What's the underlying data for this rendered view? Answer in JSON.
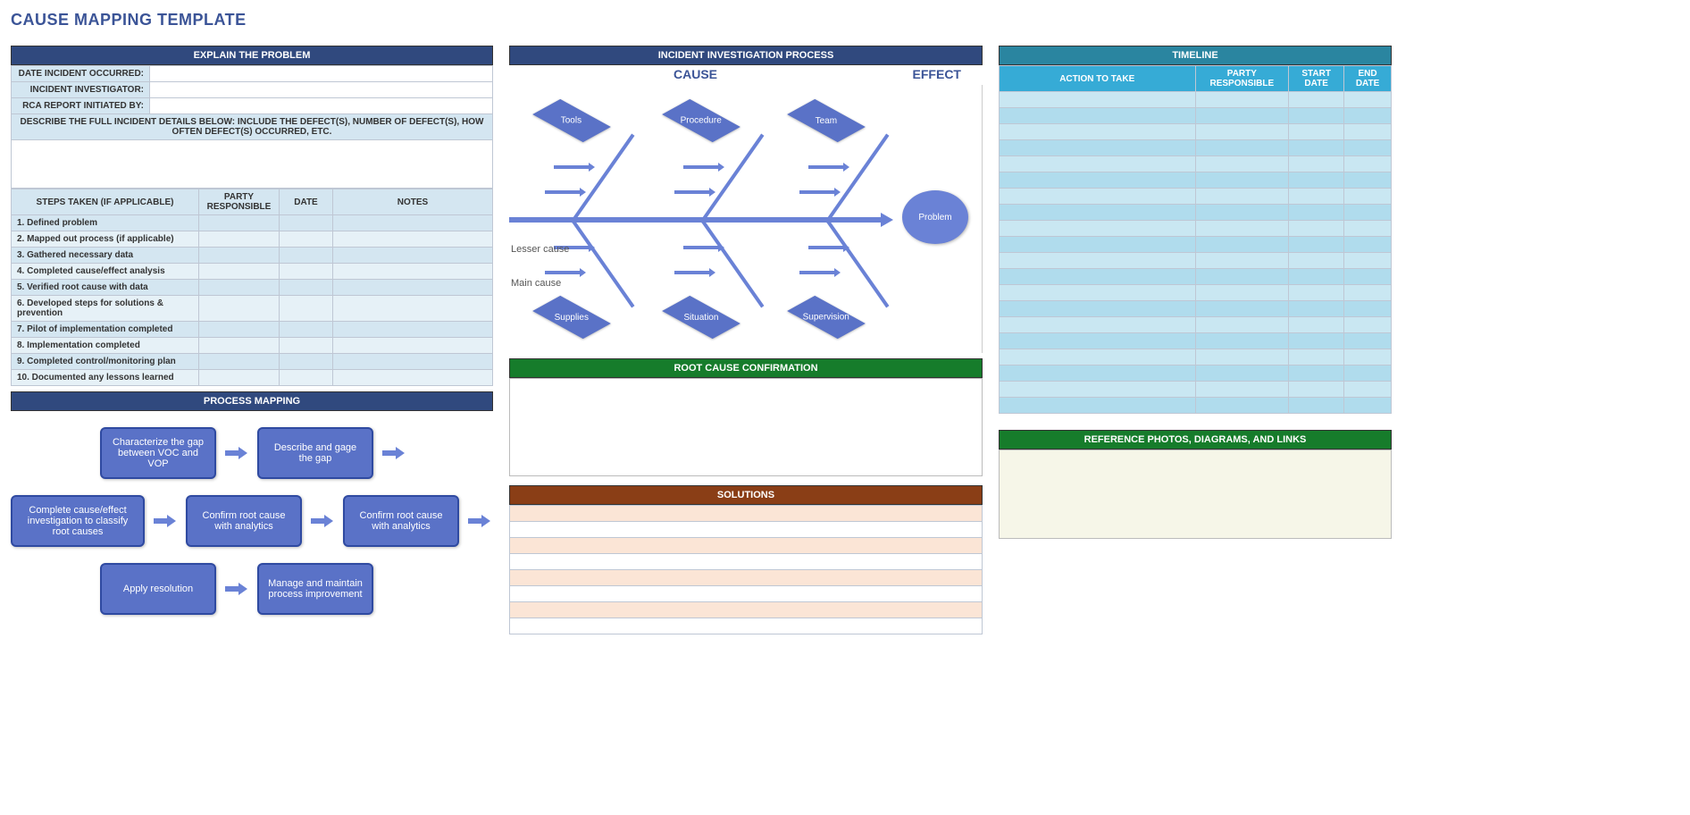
{
  "title": "CAUSE MAPPING TEMPLATE",
  "explain": {
    "header": "EXPLAIN THE PROBLEM",
    "rows": [
      {
        "label": "DATE INCIDENT OCCURRED:",
        "value": ""
      },
      {
        "label": "INCIDENT INVESTIGATOR:",
        "value": ""
      },
      {
        "label": "RCA REPORT INITIATED BY:",
        "value": ""
      }
    ],
    "describe_label": "DESCRIBE THE FULL INCIDENT DETAILS BELOW: INCLUDE THE DEFECT(S), NUMBER OF DEFECT(S), HOW OFTEN DEFECT(S) OCCURRED, ETC.",
    "steps_head": [
      "STEPS TAKEN (IF APPLICABLE)",
      "PARTY RESPONSIBLE",
      "DATE",
      "NOTES"
    ],
    "steps": [
      "1. Defined problem",
      "2. Mapped out process (if applicable)",
      "3. Gathered necessary data",
      "4. Completed cause/effect analysis",
      "5. Verified root cause with data",
      "6. Developed steps for solutions & prevention",
      "7. Pilot of implementation completed",
      "8. Implementation completed",
      "9. Completed control/monitoring plan",
      "10. Documented any lessons learned"
    ]
  },
  "process": {
    "header": "PROCESS MAPPING",
    "row1": [
      "Characterize the gap between VOC and VOP",
      "Describe and gage the gap"
    ],
    "row2": [
      "Complete cause/effect investigation to classify root causes",
      "Confirm root cause with analytics",
      "Confirm root cause with analytics"
    ],
    "row3": [
      "Apply resolution",
      "Manage and maintain process improvement"
    ]
  },
  "investigation": {
    "header": "INCIDENT INVESTIGATION PROCESS",
    "cause_label": "CAUSE",
    "effect_label": "EFFECT",
    "problem": "Problem",
    "top": [
      "Tools",
      "Procedure",
      "Team"
    ],
    "bottom": [
      "Supplies",
      "Situation",
      "Supervision"
    ],
    "lesser": "Lesser cause",
    "main": "Main cause"
  },
  "root_cause_header": "ROOT CAUSE CONFIRMATION",
  "solutions_header": "SOLUTIONS",
  "solutions_rows": 8,
  "timeline": {
    "header": "TIMELINE",
    "columns": [
      "ACTION TO TAKE",
      "PARTY RESPONSIBLE",
      "START DATE",
      "END DATE"
    ],
    "rows": 20
  },
  "reference_header": "REFERENCE PHOTOS, DIAGRAMS, AND LINKS",
  "colors": {
    "navy": "#30497e",
    "green": "#167c2b",
    "brown": "#8a3e16",
    "teal": "#2a85a0",
    "cyan": "#36abd6",
    "node": "#5a72c7"
  }
}
